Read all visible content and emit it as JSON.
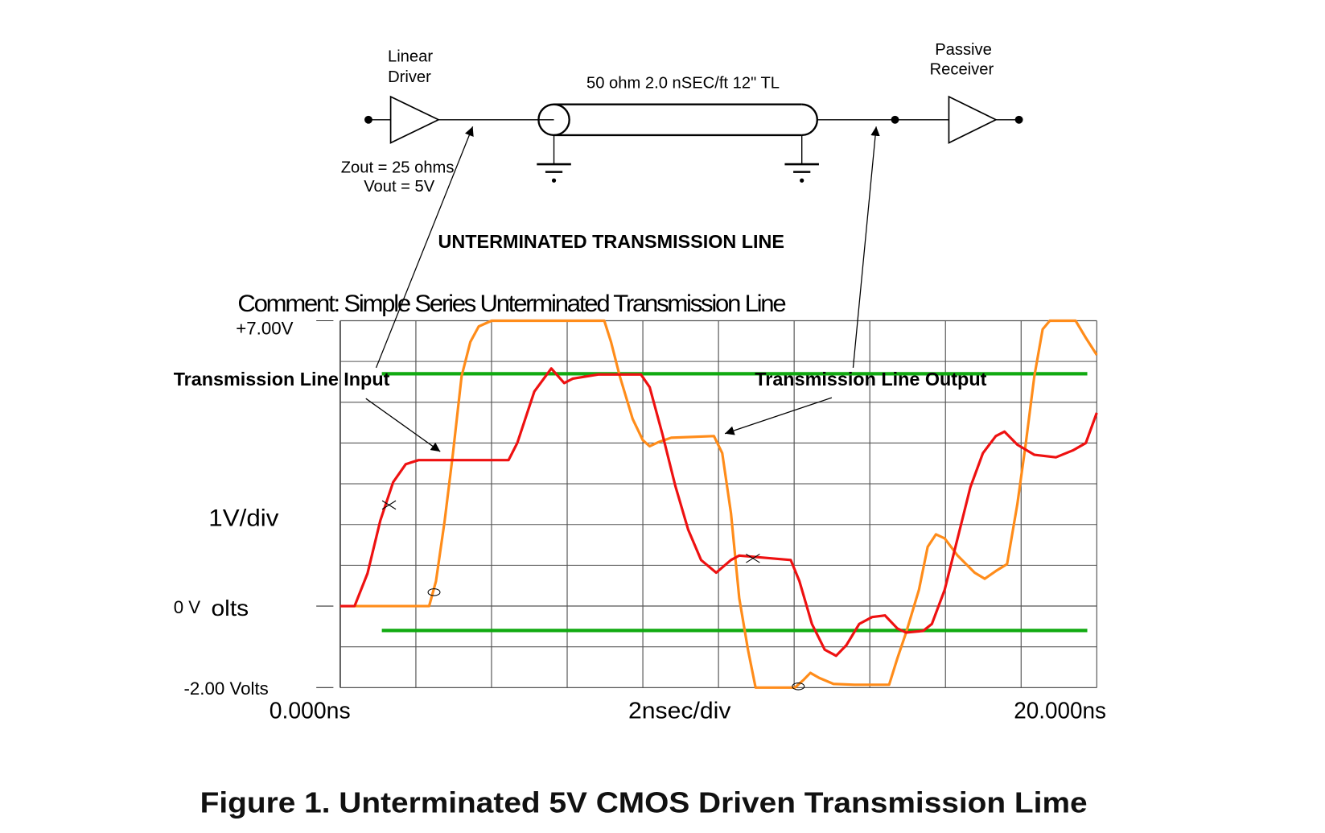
{
  "schematic": {
    "driver_label_1": "Linear",
    "driver_label_2": "Driver",
    "driver_zout": "Zout = 25 ohms",
    "driver_vout": "Vout = 5V",
    "line_label": "50 ohm 2.0 nSEC/ft 12\" TL",
    "receiver_label_1": "Passive",
    "receiver_label_2": "Receiver",
    "heading": "UNTERMINATED TRANSMISSION LINE"
  },
  "annotations": {
    "input_label": "Transmission Line Input",
    "output_label": "Transmission Line Output"
  },
  "caption": "Figure 1.  Unterminated 5V CMOS Driven Transmission Lime",
  "chart_data": {
    "type": "line",
    "title": "Comment: Simple Series Unterminated Transmission Line",
    "y_top_label": "+7.00V",
    "y_zero_label": "0 V",
    "y_units_label": "olts",
    "y_bottom_label": "-2.00 Volts",
    "y_scale_label": "1V/div",
    "x_start_label": "0.000ns",
    "x_scale_label": "2nsec/div",
    "x_end_label": "20.000ns",
    "xlim": [
      0,
      20
    ],
    "ylim": [
      -2,
      7
    ],
    "grid": true,
    "x_grid_step": 2,
    "y_grid_step": 1,
    "series": [
      {
        "color": "#ee1111",
        "x": [
          0,
          0.38,
          0.72,
          1.06,
          1.4,
          1.73,
          2.07,
          4.45,
          4.68,
          5.13,
          5.58,
          5.92,
          6.15,
          6.82,
          7.95,
          8.18,
          8.52,
          8.86,
          9.2,
          9.54,
          9.94,
          10.33,
          10.55,
          11.91,
          12.14,
          12.47,
          12.81,
          13.11,
          13.38,
          13.72,
          14.06,
          14.4,
          14.73,
          14.96,
          15.41,
          15.64,
          15.98,
          16.32,
          16.66,
          16.99,
          17.33,
          17.56,
          17.9,
          18.35,
          18.92,
          19.37,
          19.71,
          20
        ],
        "y": [
          0,
          0,
          0.8,
          2.1,
          3.04,
          3.48,
          3.58,
          3.58,
          4.0,
          5.26,
          5.83,
          5.47,
          5.58,
          5.68,
          5.68,
          5.37,
          4.21,
          2.94,
          1.87,
          1.13,
          0.82,
          1.13,
          1.24,
          1.13,
          0.61,
          -0.44,
          -1.07,
          -1.22,
          -0.96,
          -0.44,
          -0.27,
          -0.23,
          -0.55,
          -0.65,
          -0.61,
          -0.44,
          0.4,
          1.66,
          2.92,
          3.75,
          4.17,
          4.28,
          3.96,
          3.71,
          3.65,
          3.82,
          4.0,
          4.74
        ]
      },
      {
        "color": "#ff8c1a",
        "x": [
          0,
          2.35,
          2.53,
          2.76,
          2.98,
          3.21,
          3.44,
          3.66,
          4.0,
          6.98,
          7.16,
          7.39,
          7.73,
          8.0,
          8.18,
          8.41,
          8.75,
          9.88,
          10.1,
          10.33,
          10.55,
          10.78,
          10.98,
          12.02,
          12.25,
          12.43,
          12.66,
          13.04,
          13.6,
          14.51,
          14.73,
          14.96,
          15.3,
          15.53,
          15.75,
          15.98,
          16.32,
          16.77,
          17.04,
          17.33,
          17.63,
          17.9,
          18.12,
          18.35,
          18.57,
          18.76,
          19.44,
          19.71,
          20
        ],
        "y": [
          0,
          0,
          0.61,
          2.08,
          3.75,
          5.64,
          6.48,
          6.86,
          7.0,
          7.0,
          6.48,
          5.64,
          4.59,
          4.07,
          3.92,
          4.02,
          4.13,
          4.17,
          3.75,
          2.28,
          0.19,
          -1.07,
          -2.0,
          -2.0,
          -1.81,
          -1.64,
          -1.76,
          -1.91,
          -1.93,
          -1.93,
          -1.28,
          -0.65,
          0.4,
          1.45,
          1.76,
          1.66,
          1.24,
          0.82,
          0.67,
          0.86,
          1.03,
          2.5,
          3.96,
          5.64,
          6.79,
          7.0,
          7.0,
          6.58,
          6.16
        ]
      }
    ],
    "threshold_lines": [
      {
        "color": "#11aa11",
        "y": 5.7,
        "x": [
          1.1,
          19.75
        ]
      },
      {
        "color": "#11aa11",
        "y": -0.6,
        "x": [
          1.1,
          19.75
        ]
      }
    ],
    "markers": [
      {
        "shape": "x",
        "x": 1.29,
        "y": 2.48
      },
      {
        "shape": "o",
        "x": 2.48,
        "y": 0.34
      },
      {
        "shape": "x",
        "x": 10.91,
        "y": 1.17
      },
      {
        "shape": "o",
        "x": 12.11,
        "y": -1.97
      }
    ]
  }
}
